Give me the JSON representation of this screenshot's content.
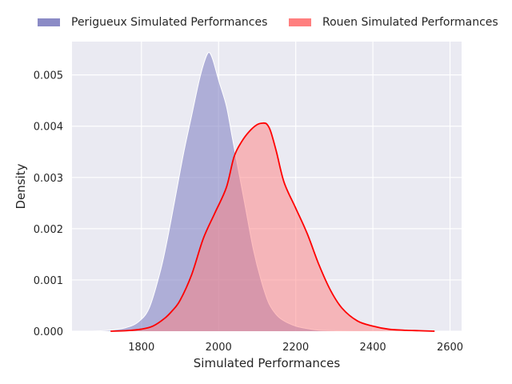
{
  "chart_data": {
    "type": "area",
    "title": "",
    "xlabel": "Simulated Performances",
    "ylabel": "Density",
    "xlim": [
      1620,
      2630
    ],
    "ylim": [
      0,
      0.00565
    ],
    "xticks": [
      1800,
      2000,
      2200,
      2400,
      2600
    ],
    "xtick_labels": [
      "1800",
      "2000",
      "2200",
      "2400",
      "2600"
    ],
    "yticks": [
      0,
      0.001,
      0.002,
      0.003,
      0.004,
      0.005
    ],
    "ytick_labels": [
      "0.000",
      "0.001",
      "0.002",
      "0.003",
      "0.004",
      "0.005"
    ],
    "grid": true,
    "legend_position": "top",
    "series": [
      {
        "name": "Perigueux Simulated Performances",
        "fill_color": "#8585c4",
        "line_color": "#ffffff",
        "x": [
          1670,
          1700,
          1730,
          1760,
          1790,
          1820,
          1850,
          1870,
          1890,
          1910,
          1930,
          1950,
          1965,
          1975,
          1985,
          2000,
          2020,
          2035,
          2050,
          2070,
          2090,
          2110,
          2130,
          2150,
          2170,
          2200,
          2230,
          2260,
          2300,
          2350,
          2420
        ],
        "y": [
          0.0,
          1e-05,
          3e-05,
          7e-05,
          0.00017,
          0.00045,
          0.0012,
          0.0019,
          0.0027,
          0.0035,
          0.0042,
          0.0049,
          0.0053,
          0.00544,
          0.0053,
          0.0049,
          0.0044,
          0.0038,
          0.0032,
          0.0024,
          0.0016,
          0.001,
          0.00055,
          0.00032,
          0.0002,
          0.0001,
          5e-05,
          2e-05,
          1e-05,
          0.0,
          0.0
        ]
      },
      {
        "name": "Rouen Simulated Performances",
        "fill_color": "#ff7f7f",
        "line_color": "#ff0000",
        "x": [
          1720,
          1760,
          1800,
          1830,
          1860,
          1880,
          1900,
          1930,
          1960,
          1990,
          2020,
          2040,
          2060,
          2080,
          2100,
          2115,
          2125,
          2135,
          2150,
          2170,
          2200,
          2230,
          2260,
          2290,
          2320,
          2360,
          2400,
          2440,
          2480,
          2520,
          2560
        ],
        "y": [
          0.0,
          1e-05,
          4e-05,
          0.0001,
          0.00025,
          0.0004,
          0.0006,
          0.0011,
          0.0018,
          0.0023,
          0.0028,
          0.0034,
          0.0037,
          0.0039,
          0.00403,
          0.00406,
          0.00404,
          0.0039,
          0.0035,
          0.0029,
          0.0024,
          0.0019,
          0.0013,
          0.0008,
          0.00045,
          0.0002,
          0.0001,
          4e-05,
          2e-05,
          1e-05,
          0.0
        ]
      }
    ]
  }
}
